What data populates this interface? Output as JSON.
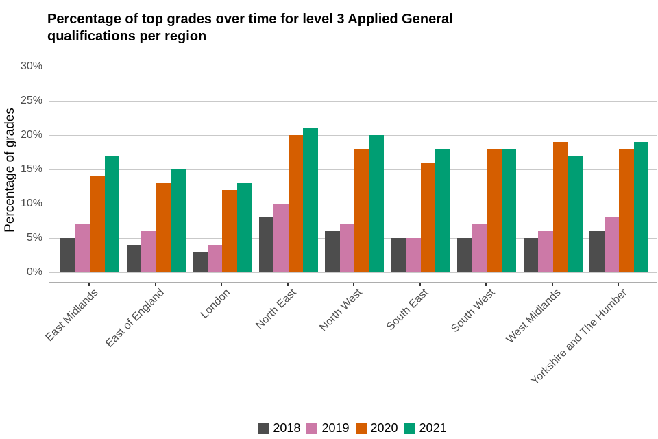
{
  "title": {
    "line1": "Percentage of top grades over time for level 3 Applied General",
    "line2": "qualifications per region"
  },
  "chart_data": {
    "type": "bar",
    "title": "Percentage of top grades over time for level 3 Applied General qualifications per region",
    "xlabel": "",
    "ylabel": "Percentage of grades",
    "ylim": [
      0,
      30
    ],
    "ytick_step": 5,
    "ytick_labels": [
      "0%",
      "5%",
      "10%",
      "15%",
      "20%",
      "25%",
      "30%"
    ],
    "grid": "horizontal-major",
    "legend_position": "bottom-center",
    "categories": [
      "East Midlands",
      "East of England",
      "London",
      "North East",
      "North West",
      "South East",
      "South West",
      "West Midlands",
      "Yorkshire and The Humber"
    ],
    "series": [
      {
        "name": "2018",
        "color": "#4D4D4D",
        "values": [
          5,
          4,
          3,
          8,
          6,
          5,
          5,
          5,
          6
        ]
      },
      {
        "name": "2019",
        "color": "#CC79A7",
        "values": [
          7,
          6,
          4,
          10,
          7,
          5,
          7,
          6,
          8
        ]
      },
      {
        "name": "2020",
        "color": "#D55E00",
        "values": [
          14,
          13,
          12,
          20,
          18,
          16,
          18,
          19,
          18
        ]
      },
      {
        "name": "2021",
        "color": "#009E73",
        "values": [
          17,
          15,
          13,
          21,
          20,
          18,
          18,
          17,
          19
        ]
      }
    ],
    "colors": {
      "grid": "#C9C9C9",
      "axis_line": "#ADADAD",
      "tick_mark": "#333333",
      "tick_label": "#4D4D4D"
    }
  }
}
